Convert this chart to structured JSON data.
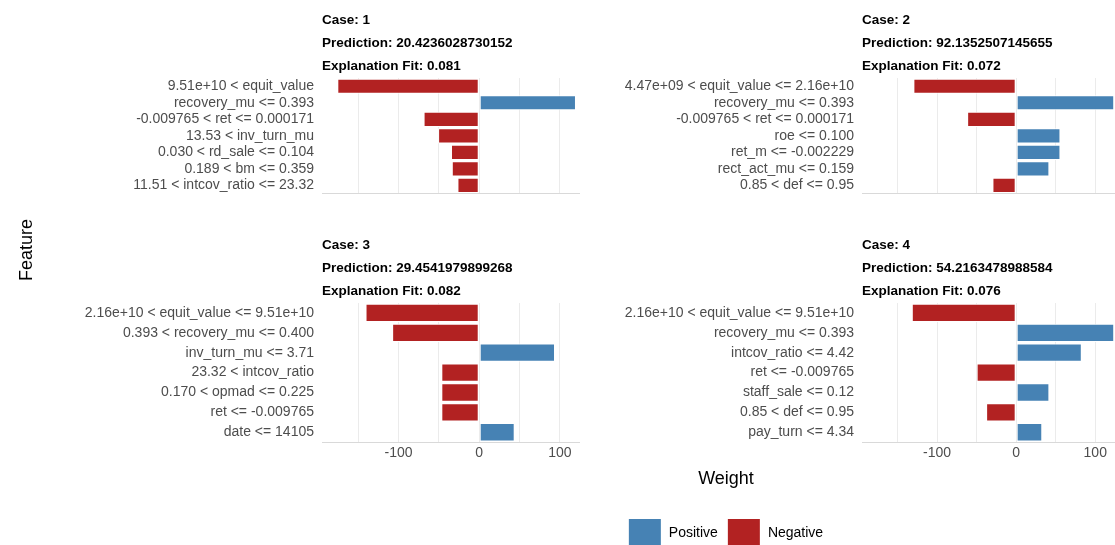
{
  "chart_data": [
    {
      "type": "bar",
      "orientation": "horizontal",
      "stacked": true,
      "title": "Case: 1",
      "subtitle": "Prediction: 20.4236028730152",
      "annotations": [
        "Explanation Fit: 0.081"
      ],
      "categories": [
        "9.51e+10 < equit_value",
        "recovery_mu <= 0.393",
        "-0.009765 < ret <= 0.000171",
        "13.53 < inv_turn_mu",
        "0.030 < rd_sale <= 0.104",
        "0.189 < bm <= 0.359",
        "11.51 < intcov_ratio <= 23.32"
      ],
      "series": [
        {
          "color": "#4682b4",
          "values": [
            null,
            120,
            null,
            null,
            null,
            null,
            null
          ]
        },
        {
          "color": "#b22222",
          "values": [
            -176,
            null,
            -69,
            -51,
            -35,
            -34,
            -27
          ]
        }
      ],
      "xlim": [
        -195,
        125
      ],
      "xticks": [
        {
          "value": -150,
          "label": null
        },
        -100,
        {
          "value": -50,
          "label": null
        },
        0,
        {
          "value": 50,
          "label": null
        },
        100
      ],
      "grid": "x",
      "tick_labels": "y"
    },
    {
      "type": "bar",
      "orientation": "horizontal",
      "stacked": true,
      "title": "Case: 2",
      "subtitle": "Prediction: 92.1352507145655",
      "annotations": [
        "Explanation Fit: 0.072"
      ],
      "categories": [
        "4.47e+09 < equit_value <= 2.16e+10",
        "recovery_mu <= 0.393",
        "-0.009765 < ret <= 0.000171",
        "roe <= 0.100",
        "ret_m <= -0.002229",
        "rect_act_mu <= 0.159",
        "0.85 < def <= 0.95"
      ],
      "series": [
        {
          "color": "#4682b4",
          "values": [
            null,
            124,
            null,
            56,
            56,
            42,
            null
          ]
        },
        {
          "color": "#b22222",
          "values": [
            -130,
            null,
            -62,
            null,
            null,
            null,
            -30
          ]
        }
      ],
      "xlim": [
        -195,
        125
      ],
      "xticks": [
        {
          "value": -150,
          "label": null
        },
        -100,
        {
          "value": -50,
          "label": null
        },
        0,
        {
          "value": 50,
          "label": null
        },
        100
      ],
      "grid": "x",
      "tick_labels": "y"
    },
    {
      "type": "bar",
      "orientation": "horizontal",
      "stacked": true,
      "title": "Case: 3",
      "subtitle": "Prediction: 29.4541979899268",
      "annotations": [
        "Explanation Fit: 0.082"
      ],
      "ylabel": "Feature",
      "categories": [
        "2.16e+10 < equit_value <= 9.51e+10",
        "0.393 < recovery_mu <= 0.400",
        "inv_turn_mu <= 3.71",
        "23.32 < intcov_ratio",
        "0.170 < opmad <= 0.225",
        "ret <= -0.009765",
        "date <= 14105"
      ],
      "series": [
        {
          "color": "#4682b4",
          "values": [
            null,
            null,
            94,
            null,
            null,
            null,
            44
          ]
        },
        {
          "color": "#b22222",
          "values": [
            -141,
            -108,
            null,
            -47,
            -47,
            -47,
            null
          ]
        }
      ],
      "xlim": [
        -195,
        125
      ],
      "xticks": [
        {
          "value": -150,
          "label": null
        },
        -100,
        {
          "value": -50,
          "label": null
        },
        0,
        {
          "value": 50,
          "label": null
        },
        100
      ],
      "grid": "x"
    },
    {
      "type": "bar",
      "orientation": "horizontal",
      "stacked": true,
      "title": "Case: 4",
      "subtitle": "Prediction: 54.2163478988584",
      "annotations": [
        "Explanation Fit: 0.076"
      ],
      "xlabel": "Weight",
      "categories": [
        "2.16e+10 < equit_value <= 9.51e+10",
        "recovery_mu <= 0.393",
        "intcov_ratio <= 4.42",
        "ret <= -0.009765",
        "staff_sale <= 0.12",
        "0.85 < def <= 0.95",
        "pay_turn <= 4.34"
      ],
      "series": [
        {
          "name": "Positive",
          "color": "#4682b4",
          "values": [
            null,
            124,
            83,
            null,
            42,
            null,
            33
          ]
        },
        {
          "name": "Negative",
          "color": "#b22222",
          "values": [
            -132,
            null,
            null,
            -50,
            null,
            -38,
            null
          ]
        }
      ],
      "xlim": [
        -195,
        125
      ],
      "xticks": [
        {
          "value": -150,
          "label": null
        },
        -100,
        {
          "value": -50,
          "label": null
        },
        0,
        {
          "value": 50,
          "label": null
        },
        100
      ],
      "grid": "x",
      "legend": "bottom"
    }
  ]
}
